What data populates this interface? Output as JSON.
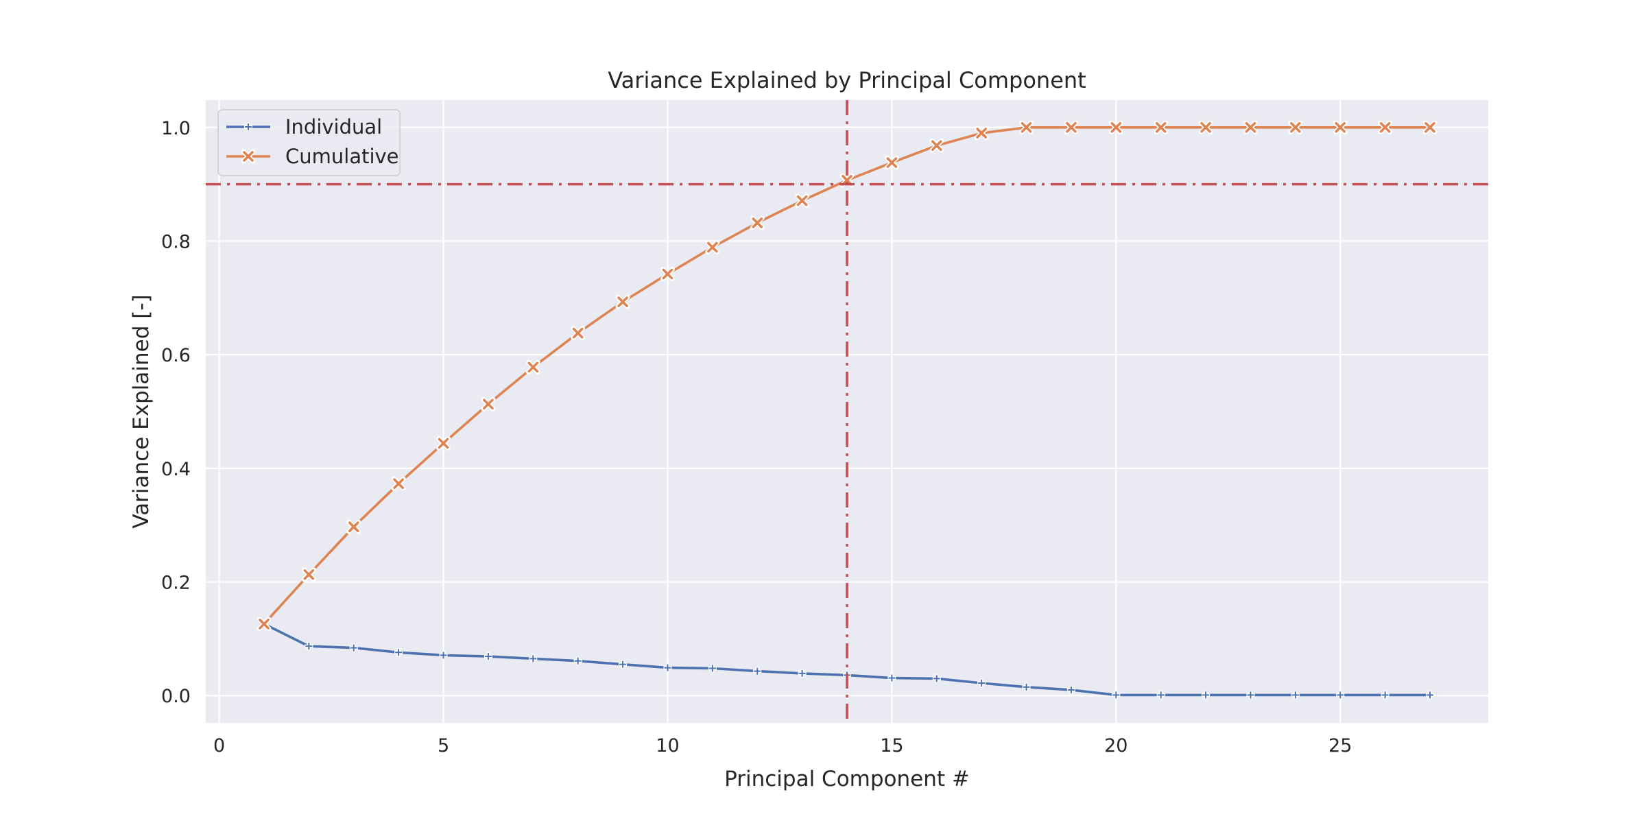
{
  "chart_data": {
    "type": "line",
    "title": "Variance Explained by Principal Component",
    "xlabel": "Principal Component #",
    "ylabel": "Variance Explained [-]",
    "xlim": [
      -0.3,
      28.3
    ],
    "ylim": [
      -0.048,
      1.048
    ],
    "xticks": [
      0,
      5,
      10,
      15,
      20,
      25
    ],
    "yticks": [
      0.0,
      0.2,
      0.4,
      0.6,
      0.8,
      1.0
    ],
    "xtick_labels": [
      "0",
      "5",
      "10",
      "15",
      "20",
      "25"
    ],
    "ytick_labels": [
      "0.0",
      "0.2",
      "0.4",
      "0.6",
      "0.8",
      "1.0"
    ],
    "grid": true,
    "legend_position": "upper-left",
    "x": [
      1,
      2,
      3,
      4,
      5,
      6,
      7,
      8,
      9,
      10,
      11,
      12,
      13,
      14,
      15,
      16,
      17,
      18,
      19,
      20,
      21,
      22,
      23,
      24,
      25,
      26,
      27
    ],
    "series": [
      {
        "name": "Individual",
        "color": "#4c72b0",
        "marker": "plus",
        "values": [
          0.126,
          0.087,
          0.084,
          0.076,
          0.071,
          0.069,
          0.065,
          0.061,
          0.055,
          0.049,
          0.048,
          0.043,
          0.039,
          0.036,
          0.031,
          0.03,
          0.022,
          0.015,
          0.01,
          0.001,
          0.001,
          0.001,
          0.001,
          0.001,
          0.001,
          0.001,
          0.001
        ]
      },
      {
        "name": "Cumulative",
        "color": "#dd8452",
        "marker": "x",
        "values": [
          0.126,
          0.213,
          0.297,
          0.373,
          0.444,
          0.513,
          0.578,
          0.638,
          0.693,
          0.742,
          0.789,
          0.832,
          0.871,
          0.907,
          0.938,
          0.968,
          0.99,
          1.0,
          1.0,
          1.0,
          1.0,
          1.0,
          1.0,
          1.0,
          1.0,
          1.0,
          1.0
        ]
      }
    ],
    "reference_lines": [
      {
        "orientation": "horizontal",
        "value": 0.9,
        "color": "#c44e52",
        "style": "dashdot"
      },
      {
        "orientation": "vertical",
        "value": 14,
        "color": "#c44e52",
        "style": "dashdot"
      }
    ],
    "background_color": "#eaeaf2",
    "grid_color": "#ffffff"
  }
}
